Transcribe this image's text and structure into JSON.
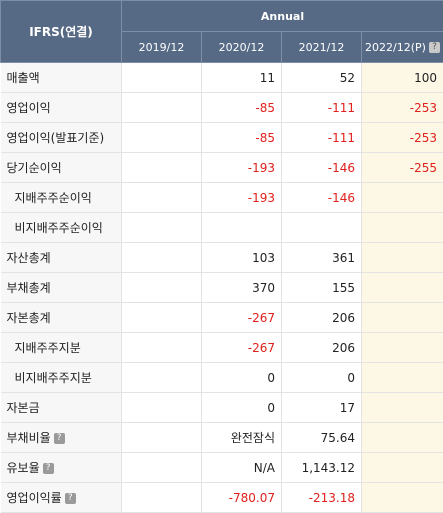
{
  "header": {
    "corner": "IFRS(연결)",
    "group": "Annual",
    "periods": [
      "2019/12",
      "2020/12",
      "2021/12",
      "2022/12(P)"
    ]
  },
  "rows": [
    {
      "label": "매출액",
      "sub": false,
      "help": false,
      "values": [
        "",
        "11",
        "52",
        "100"
      ]
    },
    {
      "label": "영업이익",
      "sub": false,
      "help": false,
      "values": [
        "",
        "-85",
        "-111",
        "-253"
      ]
    },
    {
      "label": "영업이익(발표기준)",
      "sub": false,
      "help": false,
      "values": [
        "",
        "-85",
        "-111",
        "-253"
      ]
    },
    {
      "label": "당기순이익",
      "sub": false,
      "help": false,
      "values": [
        "",
        "-193",
        "-146",
        "-255"
      ]
    },
    {
      "label": "지배주주순이익",
      "sub": true,
      "help": false,
      "values": [
        "",
        "-193",
        "-146",
        ""
      ]
    },
    {
      "label": "비지배주주순이익",
      "sub": true,
      "help": false,
      "values": [
        "",
        "",
        "",
        ""
      ]
    },
    {
      "label": "자산총계",
      "sub": false,
      "help": false,
      "values": [
        "",
        "103",
        "361",
        ""
      ]
    },
    {
      "label": "부채총계",
      "sub": false,
      "help": false,
      "values": [
        "",
        "370",
        "155",
        ""
      ]
    },
    {
      "label": "자본총계",
      "sub": false,
      "help": false,
      "values": [
        "",
        "-267",
        "206",
        ""
      ]
    },
    {
      "label": "지배주주지분",
      "sub": true,
      "help": false,
      "values": [
        "",
        "-267",
        "206",
        ""
      ]
    },
    {
      "label": "비지배주주지분",
      "sub": true,
      "help": false,
      "values": [
        "",
        "0",
        "0",
        ""
      ]
    },
    {
      "label": "자본금",
      "sub": false,
      "help": false,
      "values": [
        "",
        "0",
        "17",
        ""
      ]
    },
    {
      "label": "부채비율",
      "sub": false,
      "help": true,
      "values": [
        "",
        "완전잠식",
        "75.64",
        ""
      ]
    },
    {
      "label": "유보율",
      "sub": false,
      "help": true,
      "values": [
        "",
        "N/A",
        "1,143.12",
        ""
      ]
    },
    {
      "label": "영업이익률",
      "sub": false,
      "help": true,
      "values": [
        "",
        "-780.07",
        "-213.18",
        ""
      ]
    }
  ],
  "help_glyph": "?",
  "colors": {
    "header_bg": "#566a85",
    "negative": "#e0201c",
    "estimate_bg": "#fdf8e6"
  }
}
